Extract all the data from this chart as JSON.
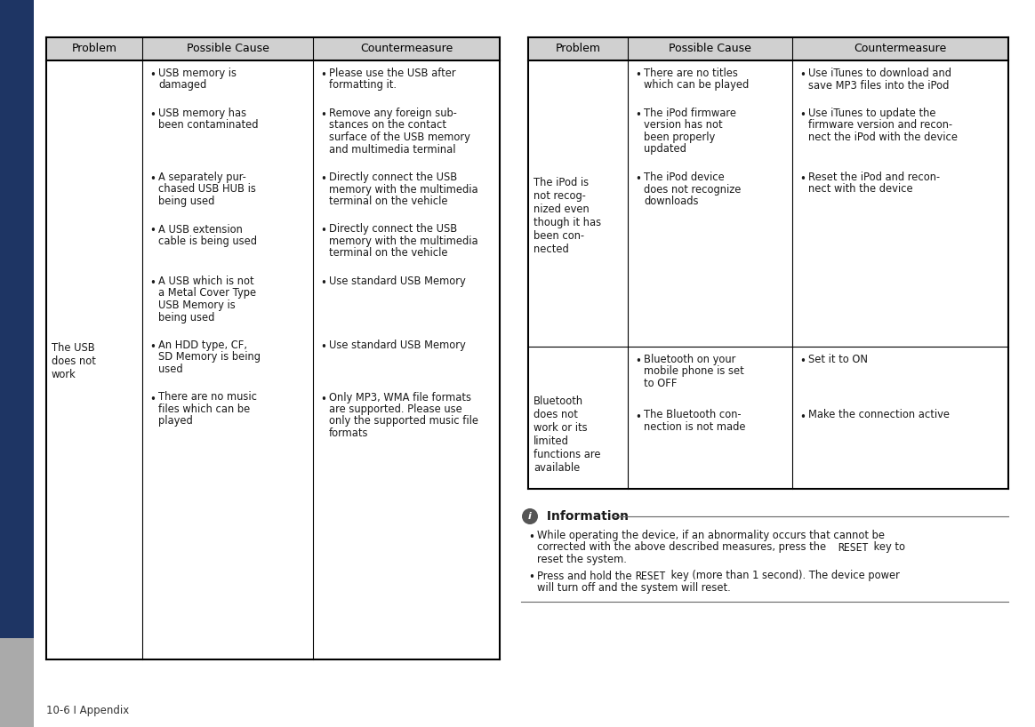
{
  "bg_color": "#ffffff",
  "sidebar_color": "#1e3564",
  "sidebar_bottom_color": "#aaaaaa",
  "header_bg": "#d0d0d0",
  "page_bg": "#e8e8e8",
  "footer_text": "10-6 I Appendix",
  "table1": {
    "headers": [
      "Problem",
      "Possible Cause",
      "Countermeasure"
    ],
    "problem": "The USB\ndoes not\nwork",
    "causes": [
      "USB memory is\ndamaged",
      "USB memory has\nbeen contaminated",
      "A separately pur-\nchased USB HUB is\nbeing used",
      "A USB extension\ncable is being used",
      "A USB which is not\na Metal Cover Type\nUSB Memory is\nbeing used",
      "An HDD type, CF,\nSD Memory is being\nused",
      "There are no music\nfiles which can be\nplayed"
    ],
    "countermeasures": [
      "Please use the USB after\nformatting it.",
      "Remove any foreign sub-\nstances on the contact\nsurface of the USB memory\nand multimedia terminal",
      "Directly connect the USB\nmemory with the multimedia\nterminal on the vehicle",
      "Directly connect the USB\nmemory with the multimedia\nterminal on the vehicle",
      "Use standard USB Memory",
      "Use standard USB Memory",
      "Only MP3, WMA file formats\nare supported. Please use\nonly the supported music file\nformats"
    ]
  },
  "table2_row1": {
    "headers": [
      "Problem",
      "Possible Cause",
      "Countermeasure"
    ],
    "problem": "The iPod is\nnot recog-\nnized even\nthough it has\nbeen con-\nnected",
    "causes": [
      "There are no titles\nwhich can be played",
      "The iPod firmware\nversion has not\nbeen properly\nupdated",
      "The iPod device\ndoes not recognize\ndownloads"
    ],
    "countermeasures": [
      "Use iTunes to download and\nsave MP3 files into the iPod",
      "Use iTunes to update the\nfirmware version and recon-\nnect the iPod with the device",
      "Reset the iPod and recon-\nnect with the device"
    ]
  },
  "table2_row2": {
    "problem": "Bluetooth\ndoes not\nwork or its\nlimited\nfunctions are\navailable",
    "causes": [
      "Bluetooth on your\nmobile phone is set\nto OFF",
      "The Bluetooth con-\nnection is not made"
    ],
    "countermeasures": [
      "Set it to ON",
      "Make the connection active"
    ]
  },
  "info_bullet1_normal": "While operating the device, if an abnormality occurs that cannot be corrected with the above described measures, press the ",
  "info_bullet1_mono": "RESET",
  "info_bullet1_end": " key to\nreset the system.",
  "info_bullet2_start": "Press and hold the ",
  "info_bullet2_mono": "RESET",
  "info_bullet2_mid": " key (more than 1 second). The device power\nwill turn off and the system will reset."
}
